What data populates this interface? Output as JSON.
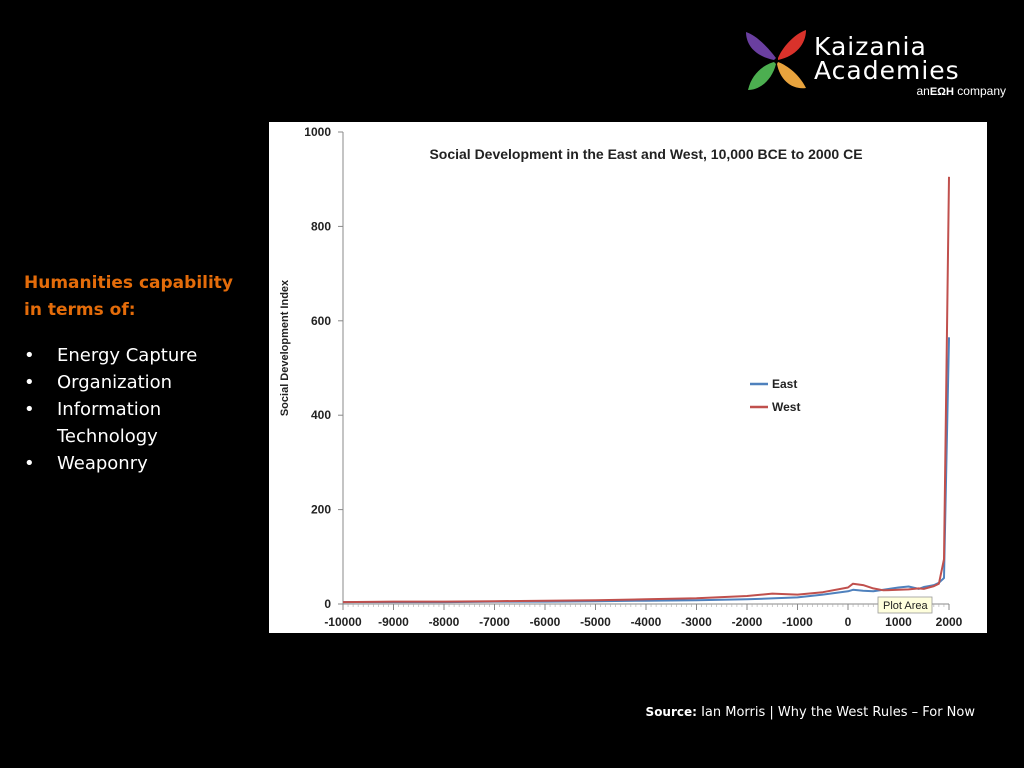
{
  "logo": {
    "line1": "Kaizania",
    "line2": "Academies",
    "sub_prefix": "an",
    "sub_brand": "ΕΩΗ",
    "sub_suffix": "company",
    "colors": [
      "#6a3fa0",
      "#d9322b",
      "#4caf50",
      "#e8a33d"
    ]
  },
  "sidebar": {
    "title": "Humanities capability in terms of:",
    "items": [
      "Energy Capture",
      "Organization",
      "Information Technology",
      "Weaponry"
    ],
    "title_color": "#e46c0a"
  },
  "chart_data": {
    "type": "line",
    "title": "Social Development in the East and West, 10,000 BCE to 2000 CE",
    "ylabel": "Social Development Index",
    "xlabel": "",
    "xlim": [
      -10000,
      2000
    ],
    "ylim": [
      0,
      1000
    ],
    "xticks": [
      -10000,
      -9000,
      -8000,
      -7000,
      -6000,
      -5000,
      -4000,
      -3000,
      -2000,
      -1000,
      0,
      1000,
      2000
    ],
    "yticks": [
      0,
      200,
      400,
      600,
      800,
      1000
    ],
    "grid": false,
    "legend_position": "right",
    "tooltip": "Plot Area",
    "series": [
      {
        "name": "East",
        "color": "#4f81bd",
        "points": [
          [
            -10000,
            4
          ],
          [
            -9000,
            4
          ],
          [
            -8000,
            4
          ],
          [
            -7000,
            5
          ],
          [
            -6000,
            5
          ],
          [
            -5000,
            6
          ],
          [
            -4000,
            7
          ],
          [
            -3000,
            8
          ],
          [
            -2000,
            10
          ],
          [
            -1000,
            14
          ],
          [
            -500,
            20
          ],
          [
            0,
            27
          ],
          [
            100,
            30
          ],
          [
            300,
            28
          ],
          [
            500,
            27
          ],
          [
            700,
            30
          ],
          [
            1000,
            35
          ],
          [
            1200,
            37
          ],
          [
            1400,
            32
          ],
          [
            1500,
            36
          ],
          [
            1600,
            38
          ],
          [
            1700,
            40
          ],
          [
            1800,
            45
          ],
          [
            1900,
            55
          ],
          [
            2000,
            565
          ]
        ]
      },
      {
        "name": "West",
        "color": "#c0504d",
        "points": [
          [
            -10000,
            4
          ],
          [
            -9000,
            5
          ],
          [
            -8000,
            5
          ],
          [
            -7000,
            6
          ],
          [
            -6000,
            7
          ],
          [
            -5000,
            8
          ],
          [
            -4000,
            10
          ],
          [
            -3000,
            12
          ],
          [
            -2000,
            17
          ],
          [
            -1500,
            22
          ],
          [
            -1000,
            20
          ],
          [
            -500,
            25
          ],
          [
            0,
            35
          ],
          [
            100,
            43
          ],
          [
            300,
            40
          ],
          [
            500,
            33
          ],
          [
            700,
            29
          ],
          [
            1000,
            30
          ],
          [
            1200,
            31
          ],
          [
            1400,
            33
          ],
          [
            1500,
            32
          ],
          [
            1600,
            35
          ],
          [
            1700,
            38
          ],
          [
            1800,
            43
          ],
          [
            1900,
            95
          ],
          [
            2000,
            905
          ]
        ]
      }
    ]
  },
  "source": {
    "label": "Source:",
    "text": "Ian Morris | Why the West Rules – For Now"
  }
}
